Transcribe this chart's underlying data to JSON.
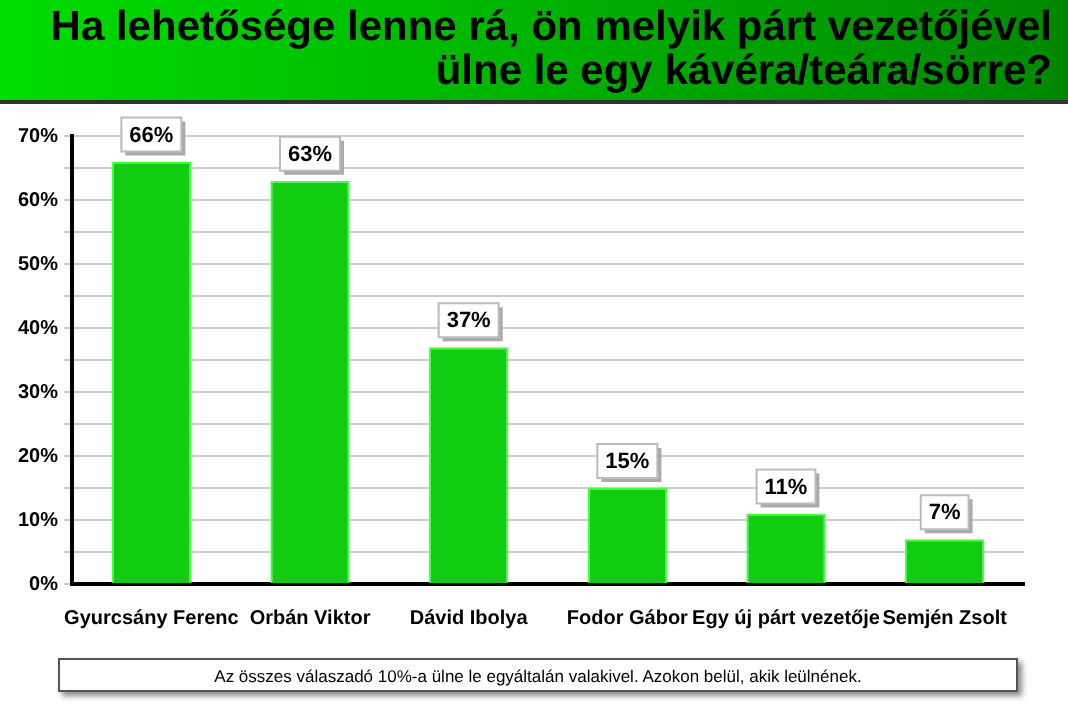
{
  "chart_data": {
    "type": "bar",
    "title": "Ha lehetősége lenne rá, ön melyik párt vezetőjével ülne le egy kávéra/teára/sörre?",
    "categories": [
      "Gyurcsány Ferenc",
      "Orbán Viktor",
      "Dávid Ibolya",
      "Fodor Gábor",
      "Egy új párt vezetője",
      "Semjén Zsolt"
    ],
    "values": [
      66,
      63,
      37,
      15,
      11,
      7
    ],
    "value_labels": [
      "66%",
      "63%",
      "37%",
      "15%",
      "11%",
      "7%"
    ],
    "color": "#11cc11",
    "ylim": [
      0,
      70
    ],
    "yticks": [
      {
        "value": 0,
        "label": "0%"
      },
      {
        "value": 5,
        "label": null
      },
      {
        "value": 10,
        "label": "10%"
      },
      {
        "value": 15,
        "label": null
      },
      {
        "value": 20,
        "label": "20%"
      },
      {
        "value": 25,
        "label": null
      },
      {
        "value": 30,
        "label": "30%"
      },
      {
        "value": 35,
        "label": null
      },
      {
        "value": 40,
        "label": "40%"
      },
      {
        "value": 45,
        "label": null
      },
      {
        "value": 50,
        "label": "50%"
      },
      {
        "value": 55,
        "label": null
      },
      {
        "value": 60,
        "label": "60%"
      },
      {
        "value": 65,
        "label": null
      },
      {
        "value": 70,
        "label": "70%"
      }
    ],
    "grid": true,
    "annotations": [
      "Az összes válaszadó 10%-a ülne le egyáltalán valakivel. Azokon belül, akik leülnének."
    ]
  }
}
